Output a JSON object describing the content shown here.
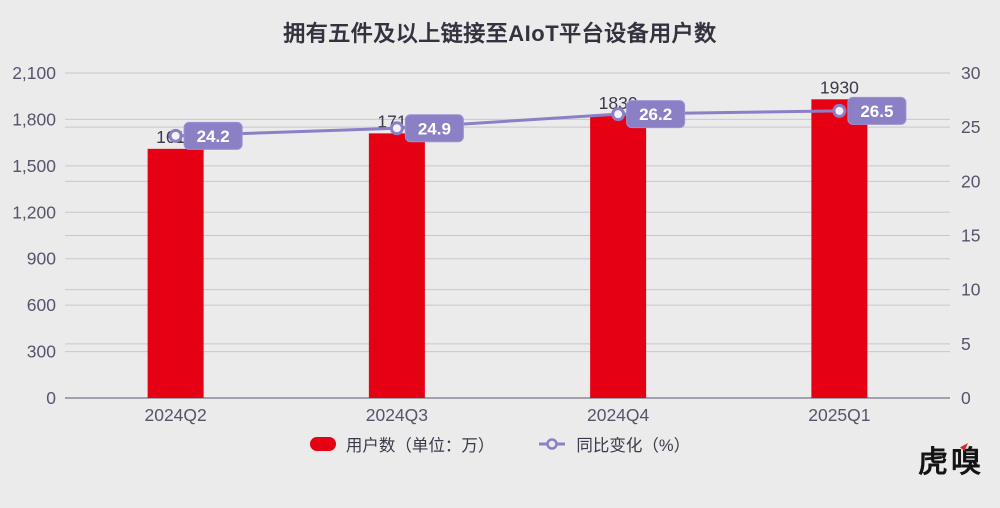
{
  "chart_data": {
    "type": "bar",
    "combo": "bar+line",
    "title": "拥有五件及以上链接至AIoT平台设备用户数",
    "categories": [
      "2024Q2",
      "2024Q3",
      "2024Q4",
      "2025Q1"
    ],
    "series": [
      {
        "name": "用户数（单位：万）",
        "type": "bar",
        "axis": "left",
        "color": "#e60013",
        "values": [
          1610,
          1710,
          1830,
          1930
        ],
        "labels": [
          "1610",
          "1710",
          "1830",
          "1930"
        ]
      },
      {
        "name": "同比变化（%）",
        "type": "line",
        "axis": "right",
        "color": "#8b80c6",
        "values": [
          24.2,
          24.9,
          26.2,
          26.5
        ],
        "labels": [
          "24.2",
          "24.9",
          "26.2",
          "26.5"
        ]
      }
    ],
    "left_axis": {
      "min": 0,
      "max": 2100,
      "step": 300,
      "tick_labels": [
        "0",
        "300",
        "600",
        "900",
        "1,200",
        "1,500",
        "1,800",
        "2,100"
      ]
    },
    "right_axis": {
      "min": 0,
      "max": 30,
      "step": 5,
      "tick_labels": [
        "0",
        "5",
        "10",
        "15",
        "20",
        "25",
        "30"
      ]
    },
    "grid": true,
    "legend_position": "bottom"
  },
  "colors": {
    "background": "#ebebec",
    "grid": "#c7c7ce",
    "axis_line": "#a2a2ad",
    "axis_text": "#55546b",
    "title_text": "#33323e",
    "bar_label": "#3b3a4a",
    "badge_fill": "#8b80c6",
    "badge_border": "#9b91d4",
    "badge_text": "#ffffff",
    "marker_fill": "#f4f2fa",
    "legend_text": "#3a3949"
  },
  "logo": {
    "text": "虎嗅",
    "accent_color": "#cf2b23"
  }
}
